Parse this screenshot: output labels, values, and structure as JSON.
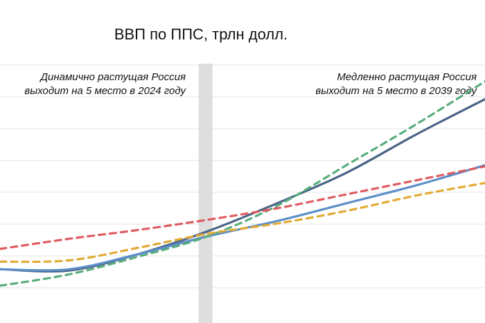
{
  "chart_data": {
    "type": "line",
    "title": "ВВП по ППС, трлн долл.",
    "xlabel": "",
    "ylabel": "",
    "grid": true,
    "legend": "none",
    "highlight_band": {
      "x_start": 8.6,
      "x_end": 9.2
    },
    "annotations": [
      {
        "lines": [
          "Динамично растущая Россия",
          "выходит на 5 место в 2024 году"
        ],
        "anchor": "right-of-left-panel"
      },
      {
        "lines": [
          "Медленно растущая Россия",
          "выходит на 5 место в 2039 году"
        ],
        "anchor": "top-right"
      }
    ],
    "x": [
      0,
      3,
      6,
      9,
      12,
      15,
      18,
      21
    ],
    "xlim": [
      0,
      21
    ],
    "ylim": [
      0,
      10
    ],
    "series": [
      {
        "color": "#4a6487",
        "style": "solid",
        "values": [
          1.9,
          1.85,
          2.5,
          3.4,
          4.5,
          5.7,
          7.2,
          8.6
        ]
      },
      {
        "color": "#5b8ec9",
        "style": "solid",
        "values": [
          1.9,
          1.9,
          2.5,
          3.2,
          3.8,
          4.5,
          5.2,
          6.0
        ]
      },
      {
        "color": "#5aad7d",
        "style": "dashed",
        "values": [
          1.25,
          1.7,
          2.4,
          3.2,
          4.4,
          6.0,
          7.6,
          9.3
        ]
      },
      {
        "color": "#df5b62",
        "style": "dashed",
        "values": [
          2.7,
          3.1,
          3.45,
          3.85,
          4.3,
          4.85,
          5.4,
          5.95
        ]
      },
      {
        "color": "#e3aa33",
        "style": "dashed",
        "values": [
          2.2,
          2.25,
          2.75,
          3.3,
          3.7,
          4.2,
          4.8,
          5.3
        ]
      }
    ]
  }
}
